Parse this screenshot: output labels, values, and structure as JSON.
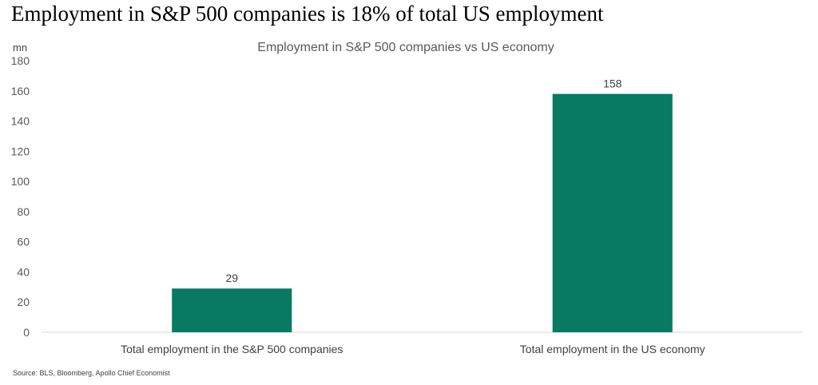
{
  "headline": "Employment in S&P 500 companies is 18% of total US employment",
  "source": "Source: BLS, Bloomberg, Apollo Chief Economist",
  "chart_data": {
    "type": "bar",
    "title": "Employment in S&P 500 companies vs US economy",
    "ylabel": "mn",
    "xlabel": "",
    "categories": [
      "Total employment in the S&P 500 companies",
      "Total employment in the US economy"
    ],
    "values": [
      29,
      158
    ],
    "data_labels": [
      "29",
      "158"
    ],
    "ylim": [
      0,
      180
    ],
    "yticks": [
      0,
      20,
      40,
      60,
      80,
      100,
      120,
      140,
      160,
      180
    ],
    "grid": false,
    "legend": "none",
    "bar_color": "#077a61",
    "axis_color": "#d9d9d9"
  }
}
